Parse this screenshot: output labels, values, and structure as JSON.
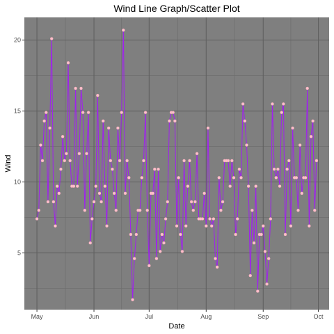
{
  "chart_data": {
    "type": "line",
    "title": "Wind Line Graph/Scatter Plot",
    "xlabel": "Date",
    "ylabel": "Wind",
    "x_start": "1973-05-01",
    "x_end": "1973-09-30",
    "ylim": [
      1.0,
      21.6
    ],
    "x_ticks": [
      {
        "label": "May",
        "date": "1973-05-01"
      },
      {
        "label": "Jun",
        "date": "1973-06-01"
      },
      {
        "label": "Jul",
        "date": "1973-07-01"
      },
      {
        "label": "Aug",
        "date": "1973-08-01"
      },
      {
        "label": "Sep",
        "date": "1973-09-01"
      },
      {
        "label": "Oct",
        "date": "1973-10-01"
      }
    ],
    "y_ticks": [
      5,
      10,
      15,
      20
    ],
    "y_minor_ticks": [
      2.5,
      7.5,
      12.5,
      17.5
    ],
    "grid": true,
    "panel_background": "#7f7f7f",
    "line_color": "#a020f0",
    "point_color": "#ffc0cb",
    "series": [
      {
        "values": [
          7.4,
          8.0,
          12.6,
          11.5,
          14.3,
          14.9,
          8.6,
          13.8,
          20.1,
          8.6,
          6.9,
          9.7,
          9.2,
          10.9,
          13.2,
          11.5,
          12.0,
          18.4,
          11.5,
          9.7,
          9.7,
          16.6,
          9.7,
          12.0,
          16.6,
          14.9,
          8.0,
          12.0,
          14.9,
          5.7,
          7.4,
          8.6,
          9.7,
          16.1,
          9.2,
          8.6,
          14.3,
          9.7,
          6.9,
          13.8,
          11.5,
          10.9,
          9.2,
          8.0,
          13.8,
          11.5,
          14.9,
          20.7,
          9.2,
          11.5,
          10.3,
          6.3,
          1.7,
          4.6,
          6.3,
          8.0,
          8.0,
          10.3,
          11.5,
          14.9,
          8.0,
          4.1,
          9.2,
          9.2,
          10.9,
          4.6,
          10.9,
          5.1,
          6.3,
          5.7,
          7.4,
          8.6,
          14.3,
          14.9,
          14.9,
          14.3,
          6.9,
          10.3,
          6.3,
          5.1,
          11.5,
          6.9,
          9.7,
          11.5,
          8.6,
          8.0,
          8.6,
          12.0,
          7.4,
          7.4,
          7.4,
          9.2,
          6.9,
          13.8,
          7.4,
          6.9,
          7.4,
          4.6,
          4.0,
          10.3,
          8.0,
          8.6,
          11.5,
          11.5,
          11.5,
          9.7,
          11.5,
          10.3,
          6.3,
          7.4,
          10.9,
          10.3,
          15.5,
          14.3,
          12.6,
          9.7,
          3.4,
          8.0,
          5.7,
          9.7,
          2.3,
          6.3,
          6.3,
          6.9,
          5.1,
          2.8,
          4.6,
          7.4,
          15.5,
          10.9,
          10.3,
          10.9,
          9.7,
          14.9,
          15.5,
          6.3,
          10.9,
          11.5,
          6.9,
          13.8,
          10.3,
          10.3,
          8.0,
          12.6,
          9.2,
          10.3,
          10.3,
          16.6,
          6.9,
          13.2,
          14.3,
          8.0,
          11.5
        ]
      }
    ]
  }
}
